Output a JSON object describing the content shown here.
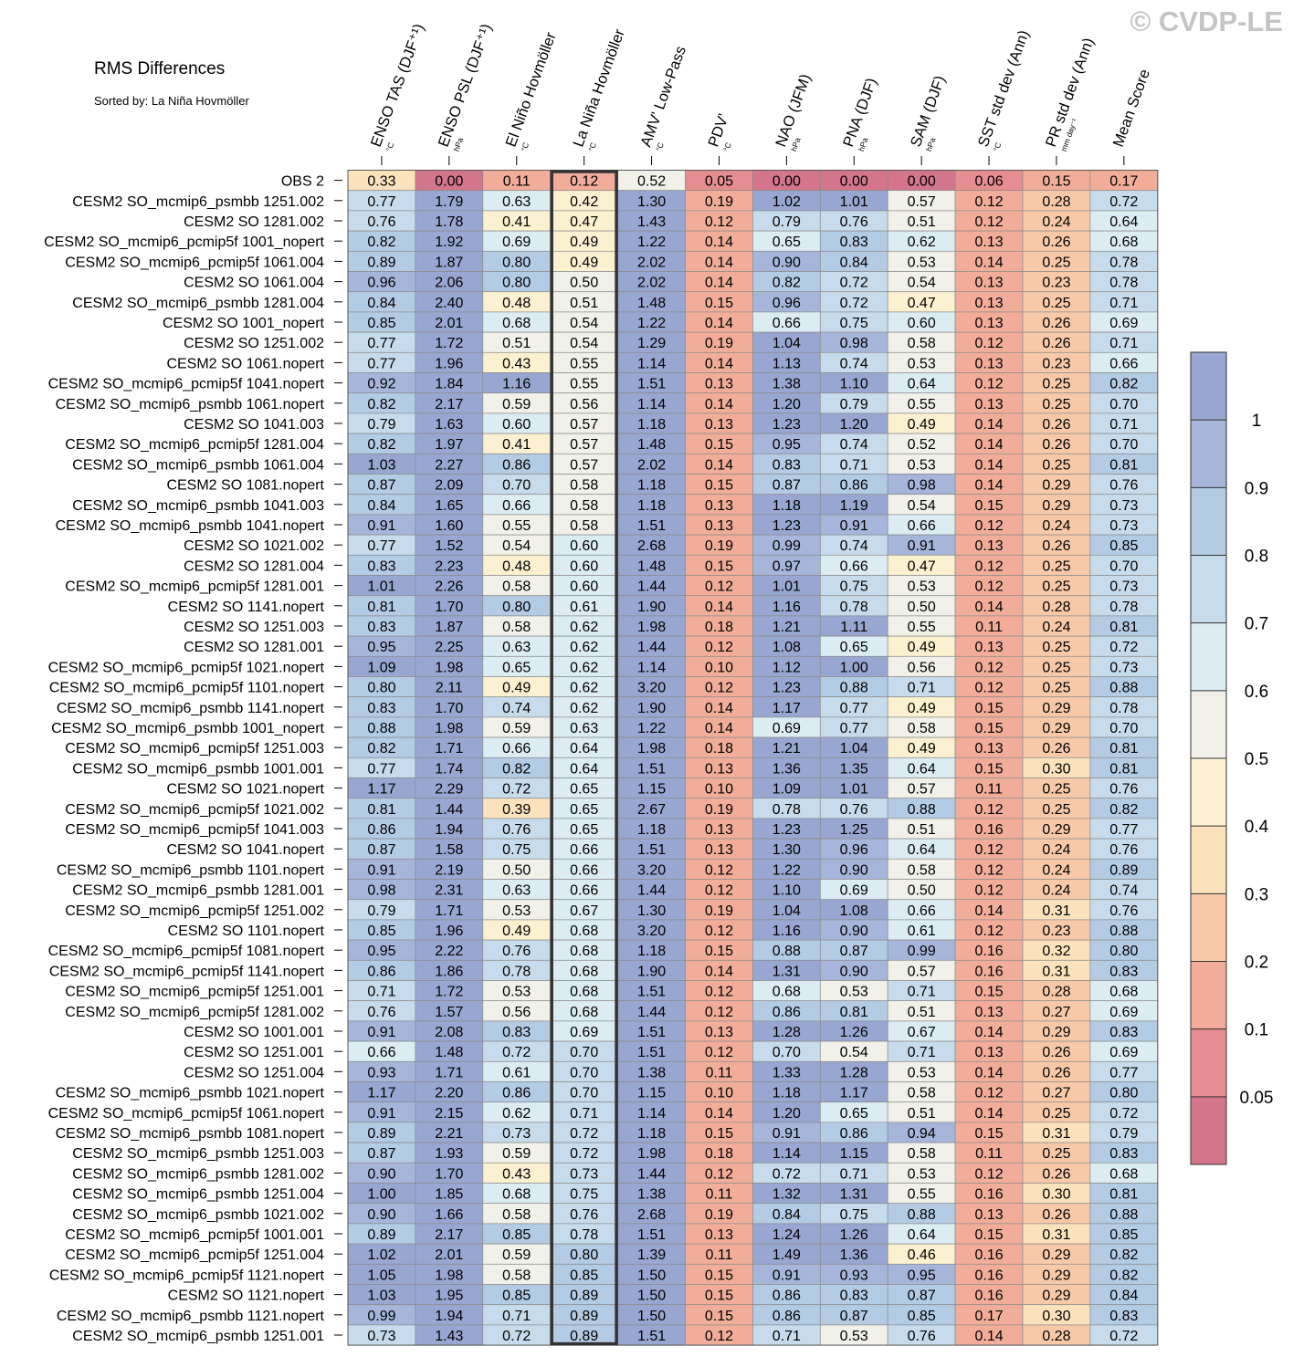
{
  "watermark": "© CVDP-LE",
  "title": "RMS Differences",
  "subtitle": "Sorted by: La Niña Hovmöller",
  "highlight_column": 3,
  "colors": {
    "bins": [
      0.05,
      0.1,
      0.2,
      0.3,
      0.4,
      0.5,
      0.6,
      0.7,
      0.8,
      0.9,
      1
    ],
    "palette": [
      "#d3758b",
      "#e58d90",
      "#f2ad9a",
      "#f7c9a9",
      "#fbe2bd",
      "#fbf0d0",
      "#f1f1ea",
      "#dcecf3",
      "#c6dcec",
      "#b4cbe4",
      "#a5b6da",
      "#98a7d1"
    ],
    "grid": "#8a8a8a",
    "highlight": "#333333"
  },
  "colorbar": {
    "labels": [
      "0.05",
      "0.1",
      "0.2",
      "0.3",
      "0.4",
      "0.5",
      "0.6",
      "0.7",
      "0.8",
      "0.9",
      "1"
    ]
  },
  "chart_data": {
    "type": "heatmap",
    "columns": [
      {
        "label": "ENSO TAS (DJF⁺¹)",
        "unit": "°C"
      },
      {
        "label": "ENSO PSL (DJF⁺¹)",
        "unit": "hPa"
      },
      {
        "label": "El Niño Hovmöller",
        "unit": "°C"
      },
      {
        "label": "La Niña Hovmöller",
        "unit": "°C"
      },
      {
        "label": "AMV' Low-Pass",
        "unit": "°C"
      },
      {
        "label": "PDV'",
        "unit": "°C"
      },
      {
        "label": "NAO (JFM)",
        "unit": "hPa"
      },
      {
        "label": "PNA (DJF)",
        "unit": "hPa"
      },
      {
        "label": "SAM (DJF)",
        "unit": "hPa"
      },
      {
        "label": "SST std dev (Ann)",
        "unit": "°C"
      },
      {
        "label": "PR std dev (Ann)",
        "unit": "mm day⁻¹"
      },
      {
        "label": "Mean Score",
        "unit": ""
      }
    ],
    "rows": [
      {
        "label": "OBS 2",
        "values": [
          "0.33",
          "0.00",
          "0.11",
          "0.12",
          "0.52",
          "0.05",
          "0.00",
          "0.00",
          "0.00",
          "0.06",
          "0.15",
          "0.17"
        ]
      },
      {
        "label": "CESM2 SO_mcmip6_psmbb 1251.002",
        "values": [
          "0.77",
          "1.79",
          "0.63",
          "0.42",
          "1.30",
          "0.19",
          "1.02",
          "1.01",
          "0.57",
          "0.12",
          "0.28",
          "0.72"
        ]
      },
      {
        "label": "CESM2 SO 1281.002",
        "values": [
          "0.76",
          "1.78",
          "0.41",
          "0.47",
          "1.43",
          "0.12",
          "0.79",
          "0.76",
          "0.51",
          "0.12",
          "0.24",
          "0.64"
        ]
      },
      {
        "label": "CESM2 SO_mcmip6_pcmip5f 1001_nopert",
        "values": [
          "0.82",
          "1.92",
          "0.69",
          "0.49",
          "1.22",
          "0.14",
          "0.65",
          "0.83",
          "0.62",
          "0.13",
          "0.26",
          "0.68"
        ]
      },
      {
        "label": "CESM2 SO_mcmip6_pcmip5f 1061.004",
        "values": [
          "0.89",
          "1.87",
          "0.80",
          "0.49",
          "2.02",
          "0.14",
          "0.90",
          "0.84",
          "0.53",
          "0.14",
          "0.25",
          "0.78"
        ]
      },
      {
        "label": "CESM2 SO 1061.004",
        "values": [
          "0.96",
          "2.06",
          "0.80",
          "0.50",
          "2.02",
          "0.14",
          "0.82",
          "0.72",
          "0.54",
          "0.13",
          "0.23",
          "0.78"
        ]
      },
      {
        "label": "CESM2 SO_mcmip6_psmbb 1281.004",
        "values": [
          "0.84",
          "2.40",
          "0.48",
          "0.51",
          "1.48",
          "0.15",
          "0.96",
          "0.72",
          "0.47",
          "0.13",
          "0.25",
          "0.71"
        ]
      },
      {
        "label": "CESM2 SO 1001_nopert",
        "values": [
          "0.85",
          "2.01",
          "0.68",
          "0.54",
          "1.22",
          "0.14",
          "0.66",
          "0.75",
          "0.60",
          "0.13",
          "0.26",
          "0.69"
        ]
      },
      {
        "label": "CESM2 SO 1251.002",
        "values": [
          "0.77",
          "1.72",
          "0.51",
          "0.54",
          "1.29",
          "0.19",
          "1.04",
          "0.98",
          "0.58",
          "0.12",
          "0.26",
          "0.71"
        ]
      },
      {
        "label": "CESM2 SO 1061.nopert",
        "values": [
          "0.77",
          "1.96",
          "0.43",
          "0.55",
          "1.14",
          "0.14",
          "1.13",
          "0.74",
          "0.53",
          "0.13",
          "0.23",
          "0.66"
        ]
      },
      {
        "label": "CESM2 SO_mcmip6_pcmip5f 1041.nopert",
        "values": [
          "0.92",
          "1.84",
          "1.16",
          "0.55",
          "1.51",
          "0.13",
          "1.38",
          "1.10",
          "0.64",
          "0.12",
          "0.25",
          "0.82"
        ]
      },
      {
        "label": "CESM2 SO_mcmip6_psmbb 1061.nopert",
        "values": [
          "0.82",
          "2.17",
          "0.59",
          "0.56",
          "1.14",
          "0.14",
          "1.20",
          "0.79",
          "0.55",
          "0.13",
          "0.25",
          "0.70"
        ]
      },
      {
        "label": "CESM2 SO 1041.003",
        "values": [
          "0.79",
          "1.63",
          "0.60",
          "0.57",
          "1.18",
          "0.13",
          "1.23",
          "1.20",
          "0.49",
          "0.14",
          "0.26",
          "0.71"
        ]
      },
      {
        "label": "CESM2 SO_mcmip6_pcmip5f 1281.004",
        "values": [
          "0.82",
          "1.97",
          "0.41",
          "0.57",
          "1.48",
          "0.15",
          "0.95",
          "0.74",
          "0.52",
          "0.14",
          "0.26",
          "0.70"
        ]
      },
      {
        "label": "CESM2 SO_mcmip6_psmbb 1061.004",
        "values": [
          "1.03",
          "2.27",
          "0.86",
          "0.57",
          "2.02",
          "0.14",
          "0.83",
          "0.71",
          "0.53",
          "0.14",
          "0.25",
          "0.81"
        ]
      },
      {
        "label": "CESM2 SO 1081.nopert",
        "values": [
          "0.87",
          "2.09",
          "0.70",
          "0.58",
          "1.18",
          "0.15",
          "0.87",
          "0.86",
          "0.98",
          "0.14",
          "0.29",
          "0.76"
        ]
      },
      {
        "label": "CESM2 SO_mcmip6_psmbb 1041.003",
        "values": [
          "0.84",
          "1.65",
          "0.66",
          "0.58",
          "1.18",
          "0.13",
          "1.18",
          "1.19",
          "0.54",
          "0.15",
          "0.29",
          "0.73"
        ]
      },
      {
        "label": "CESM2 SO_mcmip6_psmbb 1041.nopert",
        "values": [
          "0.91",
          "1.60",
          "0.55",
          "0.58",
          "1.51",
          "0.13",
          "1.23",
          "0.91",
          "0.66",
          "0.12",
          "0.24",
          "0.73"
        ]
      },
      {
        "label": "CESM2 SO 1021.002",
        "values": [
          "0.77",
          "1.52",
          "0.54",
          "0.60",
          "2.68",
          "0.19",
          "0.99",
          "0.74",
          "0.91",
          "0.13",
          "0.26",
          "0.85"
        ]
      },
      {
        "label": "CESM2 SO 1281.004",
        "values": [
          "0.83",
          "2.23",
          "0.48",
          "0.60",
          "1.48",
          "0.15",
          "0.97",
          "0.66",
          "0.47",
          "0.12",
          "0.25",
          "0.70"
        ]
      },
      {
        "label": "CESM2 SO_mcmip6_pcmip5f 1281.001",
        "values": [
          "1.01",
          "2.26",
          "0.58",
          "0.60",
          "1.44",
          "0.12",
          "1.01",
          "0.75",
          "0.53",
          "0.12",
          "0.25",
          "0.73"
        ]
      },
      {
        "label": "CESM2 SO 1141.nopert",
        "values": [
          "0.81",
          "1.70",
          "0.80",
          "0.61",
          "1.90",
          "0.14",
          "1.16",
          "0.78",
          "0.50",
          "0.14",
          "0.28",
          "0.78"
        ]
      },
      {
        "label": "CESM2 SO 1251.003",
        "values": [
          "0.83",
          "1.87",
          "0.58",
          "0.62",
          "1.98",
          "0.18",
          "1.21",
          "1.11",
          "0.55",
          "0.11",
          "0.24",
          "0.81"
        ]
      },
      {
        "label": "CESM2 SO 1281.001",
        "values": [
          "0.95",
          "2.25",
          "0.63",
          "0.62",
          "1.44",
          "0.12",
          "1.08",
          "0.65",
          "0.49",
          "0.13",
          "0.25",
          "0.72"
        ]
      },
      {
        "label": "CESM2 SO_mcmip6_pcmip5f 1021.nopert",
        "values": [
          "1.09",
          "1.98",
          "0.65",
          "0.62",
          "1.14",
          "0.10",
          "1.12",
          "1.00",
          "0.56",
          "0.12",
          "0.25",
          "0.73"
        ]
      },
      {
        "label": "CESM2 SO_mcmip6_pcmip5f 1101.nopert",
        "values": [
          "0.80",
          "2.11",
          "0.49",
          "0.62",
          "3.20",
          "0.12",
          "1.23",
          "0.88",
          "0.71",
          "0.12",
          "0.25",
          "0.88"
        ]
      },
      {
        "label": "CESM2 SO_mcmip6_psmbb 1141.nopert",
        "values": [
          "0.83",
          "1.70",
          "0.74",
          "0.62",
          "1.90",
          "0.14",
          "1.17",
          "0.77",
          "0.49",
          "0.15",
          "0.29",
          "0.78"
        ]
      },
      {
        "label": "CESM2 SO_mcmip6_psmbb 1001_nopert",
        "values": [
          "0.88",
          "1.98",
          "0.59",
          "0.63",
          "1.22",
          "0.14",
          "0.69",
          "0.77",
          "0.58",
          "0.15",
          "0.29",
          "0.70"
        ]
      },
      {
        "label": "CESM2 SO_mcmip6_pcmip5f 1251.003",
        "values": [
          "0.82",
          "1.71",
          "0.66",
          "0.64",
          "1.98",
          "0.18",
          "1.21",
          "1.04",
          "0.49",
          "0.13",
          "0.26",
          "0.81"
        ]
      },
      {
        "label": "CESM2 SO_mcmip6_psmbb 1001.001",
        "values": [
          "0.77",
          "1.74",
          "0.82",
          "0.64",
          "1.51",
          "0.13",
          "1.36",
          "1.35",
          "0.64",
          "0.15",
          "0.30",
          "0.81"
        ]
      },
      {
        "label": "CESM2 SO 1021.nopert",
        "values": [
          "1.17",
          "2.29",
          "0.72",
          "0.65",
          "1.15",
          "0.10",
          "1.09",
          "1.01",
          "0.57",
          "0.11",
          "0.25",
          "0.76"
        ]
      },
      {
        "label": "CESM2 SO_mcmip6_pcmip5f 1021.002",
        "values": [
          "0.81",
          "1.44",
          "0.39",
          "0.65",
          "2.67",
          "0.19",
          "0.78",
          "0.76",
          "0.88",
          "0.12",
          "0.25",
          "0.82"
        ]
      },
      {
        "label": "CESM2 SO_mcmip6_pcmip5f 1041.003",
        "values": [
          "0.86",
          "1.94",
          "0.76",
          "0.65",
          "1.18",
          "0.13",
          "1.23",
          "1.25",
          "0.51",
          "0.16",
          "0.29",
          "0.77"
        ]
      },
      {
        "label": "CESM2 SO 1041.nopert",
        "values": [
          "0.87",
          "1.58",
          "0.75",
          "0.66",
          "1.51",
          "0.13",
          "1.30",
          "0.96",
          "0.64",
          "0.12",
          "0.24",
          "0.76"
        ]
      },
      {
        "label": "CESM2 SO_mcmip6_psmbb 1101.nopert",
        "values": [
          "0.91",
          "2.19",
          "0.50",
          "0.66",
          "3.20",
          "0.12",
          "1.22",
          "0.90",
          "0.58",
          "0.12",
          "0.24",
          "0.89"
        ]
      },
      {
        "label": "CESM2 SO_mcmip6_psmbb 1281.001",
        "values": [
          "0.98",
          "2.31",
          "0.63",
          "0.66",
          "1.44",
          "0.12",
          "1.10",
          "0.69",
          "0.50",
          "0.12",
          "0.24",
          "0.74"
        ]
      },
      {
        "label": "CESM2 SO_mcmip6_pcmip5f 1251.002",
        "values": [
          "0.79",
          "1.71",
          "0.53",
          "0.67",
          "1.30",
          "0.19",
          "1.04",
          "1.08",
          "0.66",
          "0.14",
          "0.31",
          "0.76"
        ]
      },
      {
        "label": "CESM2 SO 1101.nopert",
        "values": [
          "0.85",
          "1.96",
          "0.49",
          "0.68",
          "3.20",
          "0.12",
          "1.16",
          "0.90",
          "0.61",
          "0.12",
          "0.23",
          "0.88"
        ]
      },
      {
        "label": "CESM2 SO_mcmip6_pcmip5f 1081.nopert",
        "values": [
          "0.95",
          "2.22",
          "0.76",
          "0.68",
          "1.18",
          "0.15",
          "0.88",
          "0.87",
          "0.99",
          "0.16",
          "0.32",
          "0.80"
        ]
      },
      {
        "label": "CESM2 SO_mcmip6_pcmip5f 1141.nopert",
        "values": [
          "0.86",
          "1.86",
          "0.78",
          "0.68",
          "1.90",
          "0.14",
          "1.31",
          "0.90",
          "0.57",
          "0.16",
          "0.31",
          "0.83"
        ]
      },
      {
        "label": "CESM2 SO_mcmip6_pcmip5f 1251.001",
        "values": [
          "0.71",
          "1.72",
          "0.53",
          "0.68",
          "1.51",
          "0.12",
          "0.68",
          "0.53",
          "0.71",
          "0.15",
          "0.28",
          "0.68"
        ]
      },
      {
        "label": "CESM2 SO_mcmip6_pcmip5f 1281.002",
        "values": [
          "0.76",
          "1.57",
          "0.56",
          "0.68",
          "1.44",
          "0.12",
          "0.86",
          "0.81",
          "0.51",
          "0.13",
          "0.27",
          "0.69"
        ]
      },
      {
        "label": "CESM2 SO 1001.001",
        "values": [
          "0.91",
          "2.08",
          "0.83",
          "0.69",
          "1.51",
          "0.13",
          "1.28",
          "1.26",
          "0.67",
          "0.14",
          "0.29",
          "0.83"
        ]
      },
      {
        "label": "CESM2 SO 1251.001",
        "values": [
          "0.66",
          "1.48",
          "0.72",
          "0.70",
          "1.51",
          "0.12",
          "0.70",
          "0.54",
          "0.71",
          "0.13",
          "0.26",
          "0.69"
        ]
      },
      {
        "label": "CESM2 SO 1251.004",
        "values": [
          "0.93",
          "1.71",
          "0.61",
          "0.70",
          "1.38",
          "0.11",
          "1.33",
          "1.28",
          "0.53",
          "0.14",
          "0.26",
          "0.77"
        ]
      },
      {
        "label": "CESM2 SO_mcmip6_psmbb 1021.nopert",
        "values": [
          "1.17",
          "2.20",
          "0.86",
          "0.70",
          "1.15",
          "0.10",
          "1.18",
          "1.17",
          "0.58",
          "0.12",
          "0.27",
          "0.80"
        ]
      },
      {
        "label": "CESM2 SO_mcmip6_pcmip5f 1061.nopert",
        "values": [
          "0.91",
          "2.15",
          "0.62",
          "0.71",
          "1.14",
          "0.14",
          "1.20",
          "0.65",
          "0.51",
          "0.14",
          "0.25",
          "0.72"
        ]
      },
      {
        "label": "CESM2 SO_mcmip6_psmbb 1081.nopert",
        "values": [
          "0.89",
          "2.21",
          "0.73",
          "0.72",
          "1.18",
          "0.15",
          "0.91",
          "0.86",
          "0.94",
          "0.15",
          "0.31",
          "0.79"
        ]
      },
      {
        "label": "CESM2 SO_mcmip6_psmbb 1251.003",
        "values": [
          "0.87",
          "1.93",
          "0.59",
          "0.72",
          "1.98",
          "0.18",
          "1.14",
          "1.15",
          "0.58",
          "0.11",
          "0.25",
          "0.83"
        ]
      },
      {
        "label": "CESM2 SO_mcmip6_psmbb 1281.002",
        "values": [
          "0.90",
          "1.70",
          "0.43",
          "0.73",
          "1.44",
          "0.12",
          "0.72",
          "0.71",
          "0.53",
          "0.12",
          "0.26",
          "0.68"
        ]
      },
      {
        "label": "CESM2 SO_mcmip6_psmbb 1251.004",
        "values": [
          "1.00",
          "1.85",
          "0.68",
          "0.75",
          "1.38",
          "0.11",
          "1.32",
          "1.31",
          "0.55",
          "0.16",
          "0.30",
          "0.81"
        ]
      },
      {
        "label": "CESM2 SO_mcmip6_psmbb 1021.002",
        "values": [
          "0.90",
          "1.66",
          "0.58",
          "0.76",
          "2.68",
          "0.19",
          "0.84",
          "0.75",
          "0.88",
          "0.13",
          "0.26",
          "0.88"
        ]
      },
      {
        "label": "CESM2 SO_mcmip6_pcmip5f 1001.001",
        "values": [
          "0.89",
          "2.17",
          "0.85",
          "0.78",
          "1.51",
          "0.13",
          "1.24",
          "1.26",
          "0.64",
          "0.15",
          "0.31",
          "0.85"
        ]
      },
      {
        "label": "CESM2 SO_mcmip6_pcmip5f 1251.004",
        "values": [
          "1.02",
          "2.01",
          "0.59",
          "0.80",
          "1.39",
          "0.11",
          "1.49",
          "1.36",
          "0.46",
          "0.16",
          "0.29",
          "0.82"
        ]
      },
      {
        "label": "CESM2 SO_mcmip6_pcmip5f 1121.nopert",
        "values": [
          "1.05",
          "1.98",
          "0.58",
          "0.85",
          "1.50",
          "0.15",
          "0.91",
          "0.93",
          "0.95",
          "0.16",
          "0.29",
          "0.82"
        ]
      },
      {
        "label": "CESM2 SO 1121.nopert",
        "values": [
          "1.03",
          "1.95",
          "0.85",
          "0.89",
          "1.50",
          "0.15",
          "0.86",
          "0.83",
          "0.87",
          "0.16",
          "0.29",
          "0.84"
        ]
      },
      {
        "label": "CESM2 SO_mcmip6_psmbb 1121.nopert",
        "values": [
          "0.99",
          "1.94",
          "0.71",
          "0.89",
          "1.50",
          "0.15",
          "0.86",
          "0.87",
          "0.85",
          "0.17",
          "0.30",
          "0.83"
        ]
      },
      {
        "label": "CESM2 SO_mcmip6_psmbb 1251.001",
        "values": [
          "0.73",
          "1.43",
          "0.72",
          "0.89",
          "1.51",
          "0.12",
          "0.71",
          "0.53",
          "0.76",
          "0.14",
          "0.28",
          "0.72"
        ]
      }
    ]
  }
}
